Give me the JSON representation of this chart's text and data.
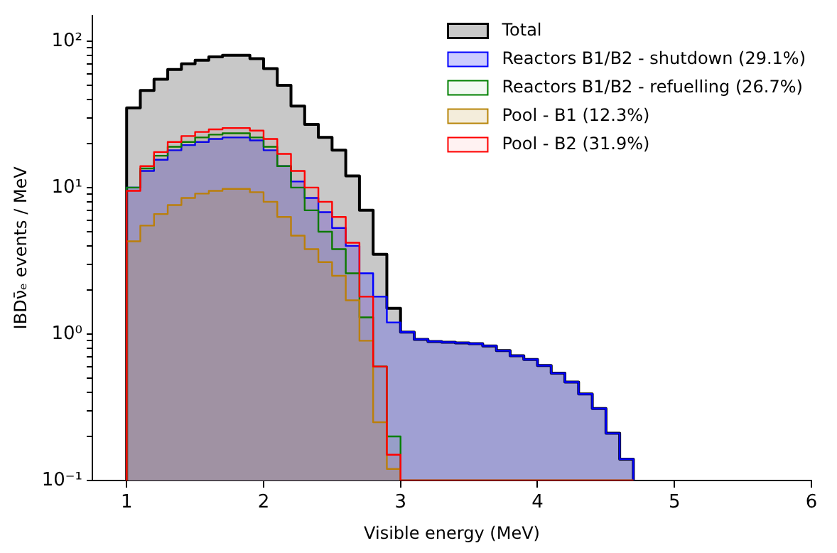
{
  "chart_data": {
    "type": "histogram",
    "xlabel": "Visible energy (MeV)",
    "ylabel": "IBDν̄ₑ events / MeV",
    "bins": [
      1.0,
      1.1,
      1.2,
      1.3,
      1.4,
      1.5,
      1.6,
      1.7,
      1.8,
      1.9,
      2.0,
      2.1,
      2.2,
      2.3,
      2.4,
      2.5,
      2.6,
      2.7,
      2.8,
      2.9,
      3.0,
      3.1,
      3.2,
      3.3,
      3.4,
      3.5,
      3.6,
      3.7,
      3.8,
      3.9,
      4.0,
      4.1,
      4.2,
      4.3,
      4.4,
      4.5,
      4.6,
      4.7
    ],
    "series": [
      {
        "name": "Total",
        "color": "#c8c8c8",
        "values": [
          35,
          46,
          55,
          64,
          70,
          74,
          78,
          80,
          80,
          76,
          65,
          50,
          36,
          27,
          22,
          18,
          12,
          7,
          3.5,
          1.5,
          1.03,
          0.92,
          0.89,
          0.88,
          0.87,
          0.86,
          0.83,
          0.77,
          0.71,
          0.67,
          0.61,
          0.54,
          0.47,
          0.39,
          0.31,
          0.21,
          0.14
        ]
      },
      {
        "name": "Reactors B1/B2 - shutdown (29.1%)",
        "color": "#0000ff",
        "values": [
          10,
          13,
          15.5,
          18,
          19.5,
          20.5,
          21.5,
          22,
          22,
          21,
          18,
          14,
          11,
          8.5,
          6.8,
          5.3,
          4.0,
          2.6,
          1.8,
          1.2,
          1.03,
          0.92,
          0.89,
          0.88,
          0.87,
          0.86,
          0.83,
          0.77,
          0.71,
          0.67,
          0.61,
          0.54,
          0.47,
          0.39,
          0.31,
          0.21,
          0.14
        ]
      },
      {
        "name": "Reactors B1/B2 - refuelling (26.7%)",
        "color": "#008000",
        "values": [
          10,
          13.5,
          16.5,
          19,
          20.5,
          22,
          23,
          23.5,
          23.5,
          22,
          19,
          14,
          10,
          7,
          5,
          3.8,
          2.6,
          1.3,
          0.6,
          0.2,
          null,
          null,
          null,
          null,
          null,
          null,
          null,
          null,
          null,
          null,
          null,
          null,
          null,
          null,
          null,
          null,
          null
        ]
      },
      {
        "name": "Pool - B1 (12.3%)",
        "color": "#b8860b",
        "values": [
          4.3,
          5.5,
          6.6,
          7.6,
          8.5,
          9.1,
          9.5,
          9.8,
          9.8,
          9.3,
          8,
          6.3,
          4.7,
          3.8,
          3.1,
          2.5,
          1.7,
          0.9,
          0.25,
          0.12,
          null,
          null,
          null,
          null,
          null,
          null,
          null,
          null,
          null,
          null,
          null,
          null,
          null,
          null,
          null,
          null,
          null
        ]
      },
      {
        "name": "Pool - B2 (31.9%)",
        "color": "#ff0000",
        "values": [
          9.5,
          14,
          17.5,
          20.5,
          22.5,
          24,
          25,
          25.5,
          25.5,
          24.5,
          21.5,
          17,
          13,
          10,
          8,
          6.3,
          4.2,
          1.8,
          0.6,
          0.15,
          null,
          null,
          null,
          null,
          null,
          null,
          null,
          null,
          null,
          null,
          null,
          null,
          null,
          null,
          null,
          null,
          null
        ]
      }
    ],
    "xlim": [
      0.75,
      6
    ],
    "xticks": [
      1,
      2,
      3,
      4,
      5,
      6
    ],
    "log": true,
    "ylim": [
      0.1,
      150
    ],
    "yticks": [
      {
        "value": 0.1,
        "label": "10⁻¹"
      },
      {
        "value": 0.2,
        "label": null
      },
      {
        "value": 0.3,
        "label": null
      },
      {
        "value": 0.4,
        "label": null
      },
      {
        "value": 0.5,
        "label": null
      },
      {
        "value": 0.6,
        "label": null
      },
      {
        "value": 0.7,
        "label": null
      },
      {
        "value": 0.8,
        "label": null
      },
      {
        "value": 0.9,
        "label": null
      },
      {
        "value": 1,
        "label": "10⁰"
      },
      {
        "value": 2,
        "label": null
      },
      {
        "value": 3,
        "label": null
      },
      {
        "value": 4,
        "label": null
      },
      {
        "value": 5,
        "label": null
      },
      {
        "value": 6,
        "label": null
      },
      {
        "value": 7,
        "label": null
      },
      {
        "value": 8,
        "label": null
      },
      {
        "value": 9,
        "label": null
      },
      {
        "value": 10,
        "label": "10¹"
      },
      {
        "value": 20,
        "label": null
      },
      {
        "value": 30,
        "label": null
      },
      {
        "value": 40,
        "label": null
      },
      {
        "value": 50,
        "label": null
      },
      {
        "value": 60,
        "label": null
      },
      {
        "value": 70,
        "label": null
      },
      {
        "value": 80,
        "label": null
      },
      {
        "value": 90,
        "label": null
      },
      {
        "value": 100,
        "label": "10²"
      }
    ],
    "legend": "top right"
  }
}
